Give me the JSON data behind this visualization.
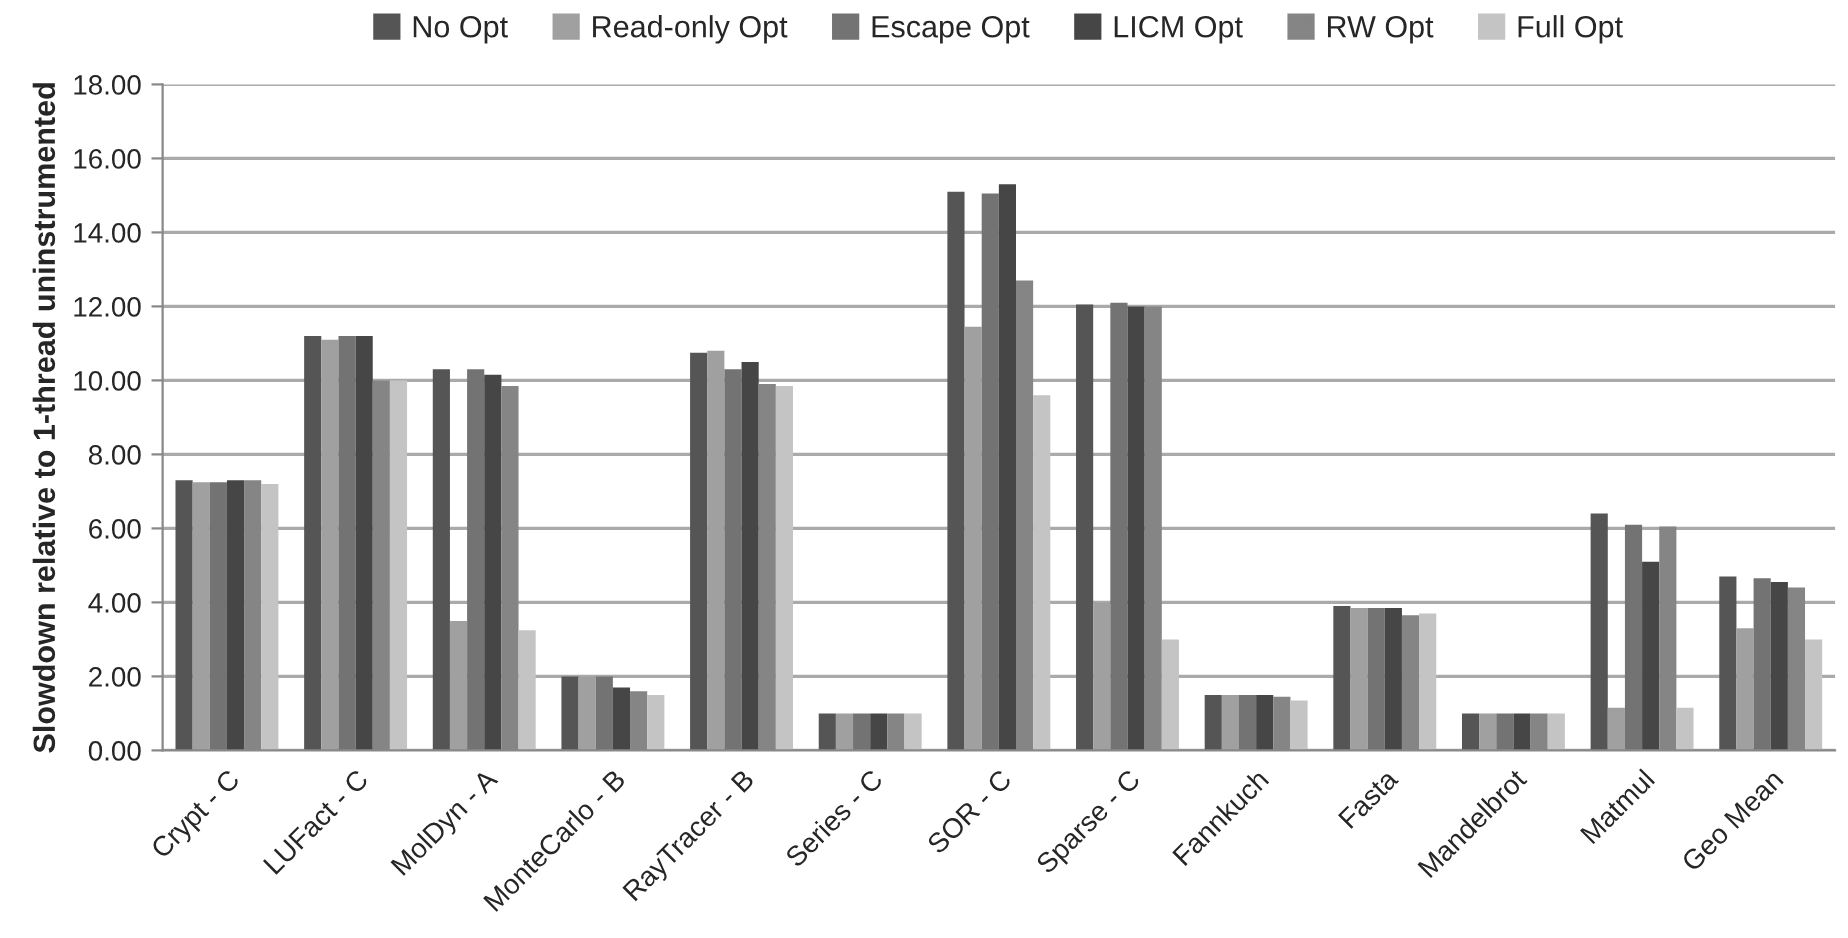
{
  "chart_data": {
    "type": "bar",
    "ylabel": "Slowdown relative to 1-thread uninstrumented",
    "categories": [
      "Crypt - C",
      "LUFact - C",
      "MolDyn - A",
      "MonteCarlo - B",
      "RayTracer - B",
      "Series - C",
      "SOR - C",
      "Sparse - C",
      "Fannkuch",
      "Fasta",
      "Mandelbrot",
      "Matmul",
      "Geo Mean"
    ],
    "series": [
      {
        "name": "No Opt",
        "color": "#555555",
        "values": [
          7.3,
          11.2,
          10.3,
          2.0,
          10.75,
          1.0,
          15.1,
          12.05,
          1.5,
          3.9,
          1.0,
          6.4,
          4.7
        ]
      },
      {
        "name": "Read-only Opt",
        "color": "#a0a0a0",
        "values": [
          7.25,
          11.1,
          3.5,
          2.0,
          10.8,
          1.0,
          11.45,
          4.0,
          1.5,
          3.85,
          1.0,
          1.15,
          3.3
        ]
      },
      {
        "name": "Escape Opt",
        "color": "#737373",
        "values": [
          7.25,
          11.2,
          10.3,
          2.0,
          10.3,
          1.0,
          15.05,
          12.1,
          1.5,
          3.85,
          1.0,
          6.1,
          4.65
        ]
      },
      {
        "name": "LICM Opt",
        "color": "#464646",
        "values": [
          7.3,
          11.2,
          10.15,
          1.7,
          10.5,
          1.0,
          15.3,
          12.0,
          1.5,
          3.85,
          1.0,
          5.1,
          4.55
        ]
      },
      {
        "name": "RW Opt",
        "color": "#858585",
        "values": [
          7.3,
          10.0,
          9.85,
          1.6,
          9.9,
          1.0,
          12.7,
          12.0,
          1.45,
          3.65,
          1.0,
          6.05,
          4.4
        ]
      },
      {
        "name": "Full Opt",
        "color": "#c4c4c4",
        "values": [
          7.2,
          10.0,
          3.25,
          1.5,
          9.85,
          1.0,
          9.6,
          3.0,
          1.35,
          3.7,
          1.0,
          1.15,
          3.0
        ]
      }
    ],
    "ylim": [
      0,
      18
    ],
    "yticks": [
      {
        "value": 0,
        "label": "0.00"
      },
      {
        "value": 2,
        "label": "2.00"
      },
      {
        "value": 4,
        "label": "4.00"
      },
      {
        "value": 6,
        "label": "6.00"
      },
      {
        "value": 8,
        "label": "8.00"
      },
      {
        "value": 10,
        "label": "10.00"
      },
      {
        "value": 12,
        "label": "12.00"
      },
      {
        "value": 14,
        "label": "14.00"
      },
      {
        "value": 16,
        "label": "16.00"
      },
      {
        "value": 18,
        "label": "18.00"
      }
    ],
    "grid": "y",
    "legend": "top"
  }
}
